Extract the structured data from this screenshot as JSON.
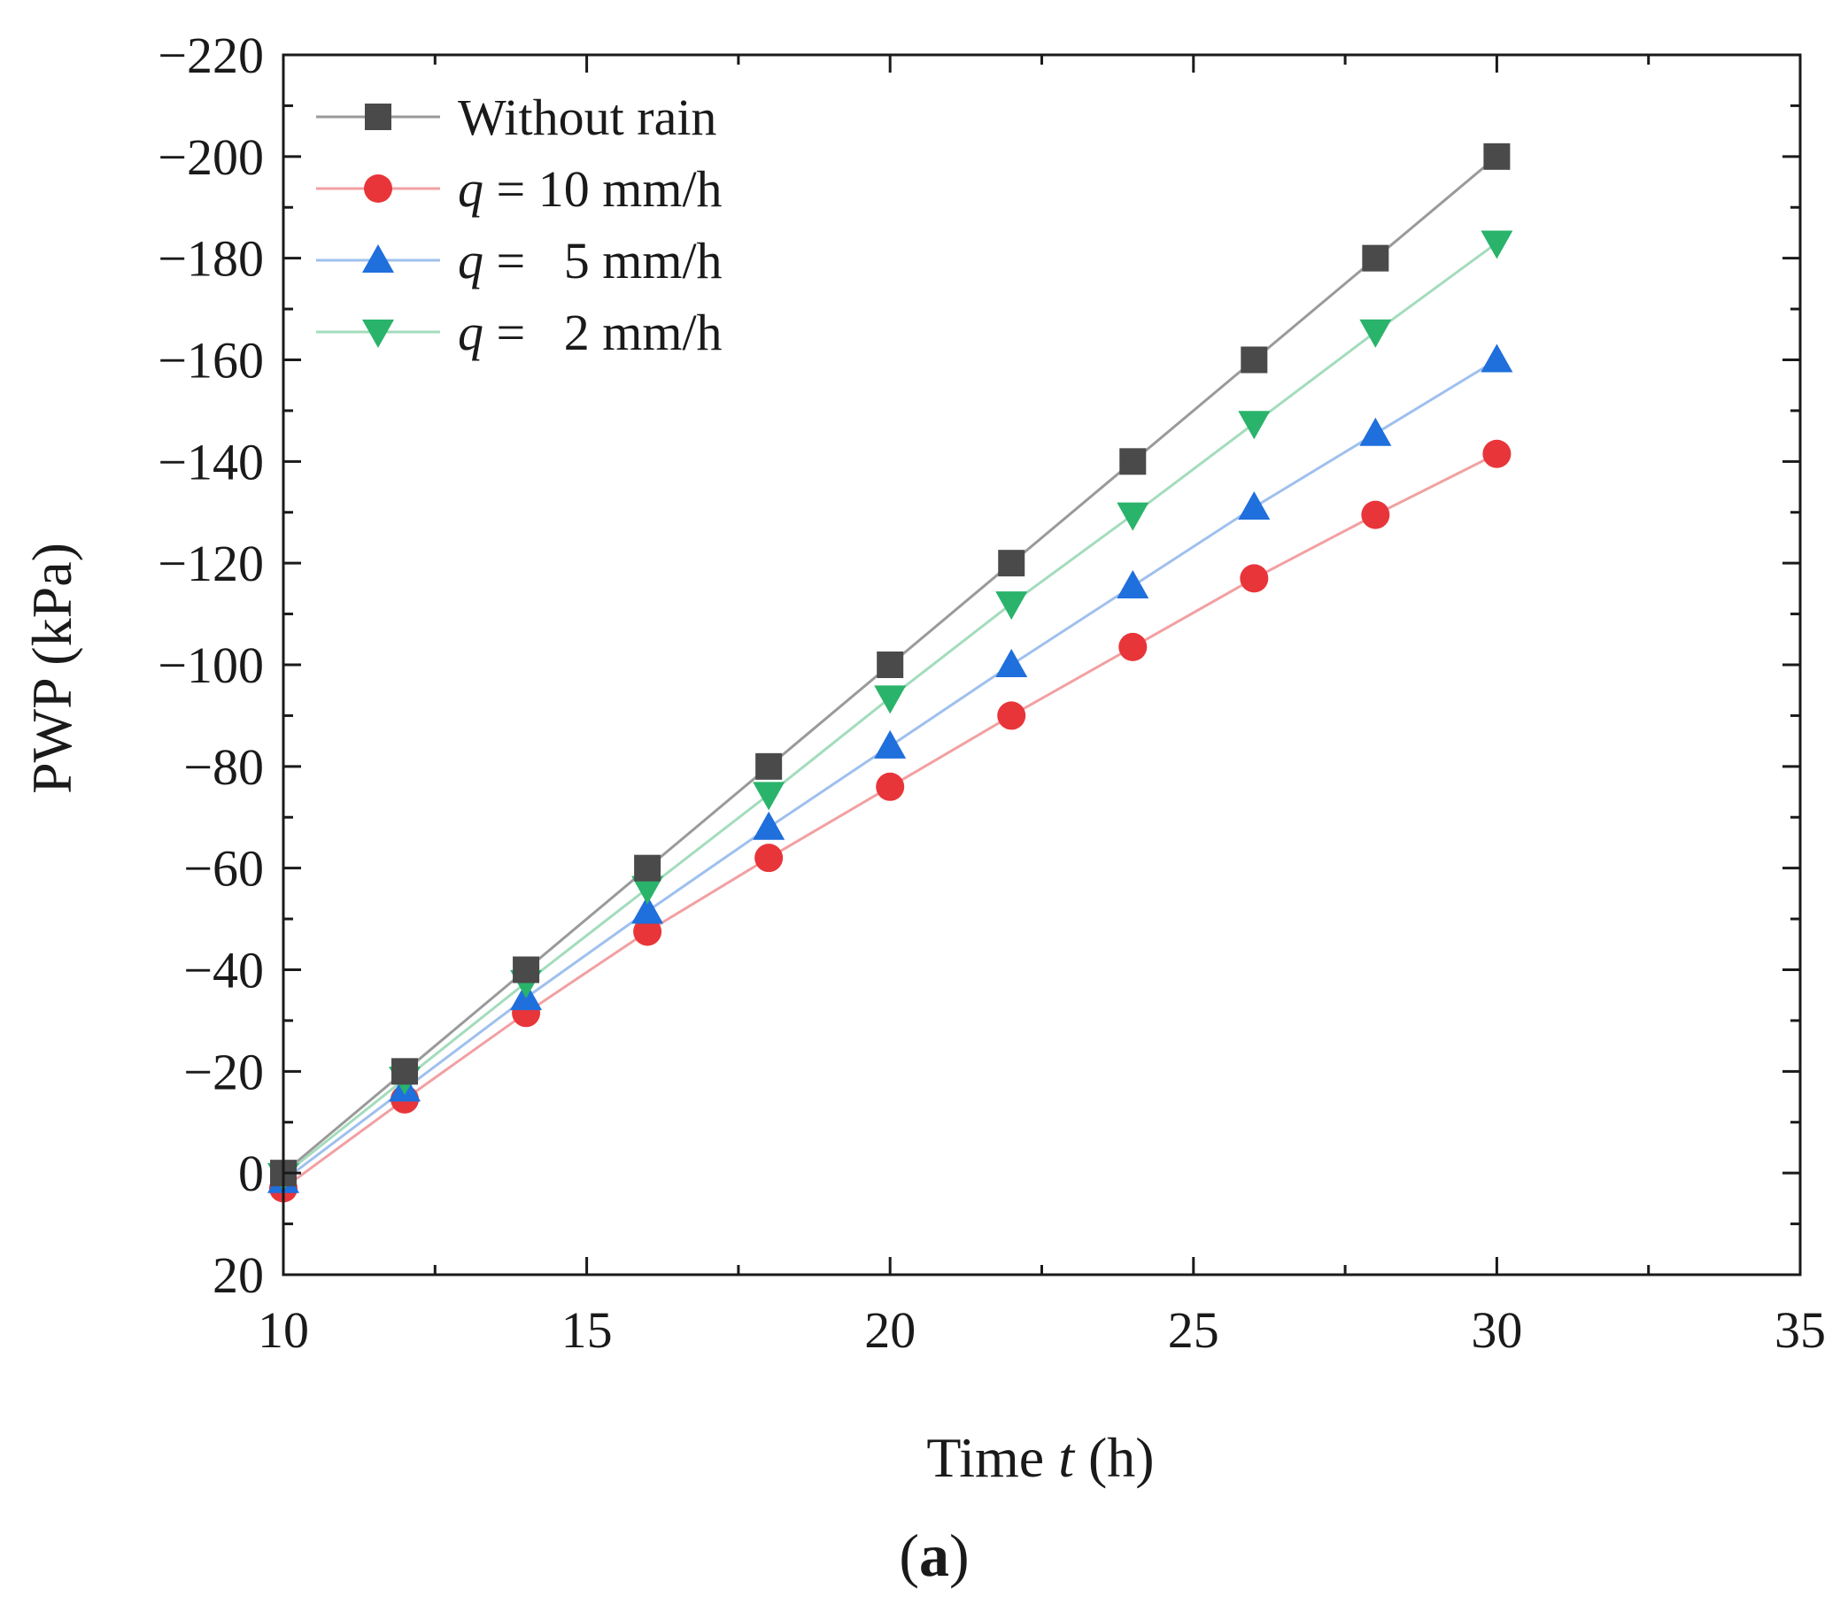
{
  "chart_data": {
    "type": "line",
    "xlabel": {
      "prefix": "Time ",
      "var": "t",
      "suffix": " (h)"
    },
    "ylabel": "PWP (kPa)",
    "xlim": [
      10,
      35
    ],
    "ylim": [
      20,
      -220
    ],
    "y_inverted": true,
    "xticks": [
      10,
      15,
      20,
      25,
      30,
      35
    ],
    "xtick_labels": [
      "10",
      "15",
      "20",
      "25",
      "30",
      "35"
    ],
    "yticks": [
      20,
      0,
      -20,
      -40,
      -60,
      -80,
      -100,
      -120,
      -140,
      -160,
      -180,
      -200,
      -220
    ],
    "ytick_labels": [
      "20",
      "0",
      "−20",
      "−40",
      "−60",
      "−80",
      "−100",
      "−120",
      "−140",
      "−160",
      "−180",
      "−200",
      "−220"
    ],
    "panel_label": {
      "open": "(",
      "letter": "a",
      "close": ")"
    },
    "legend_position": "top-left",
    "series": [
      {
        "name": "Without rain",
        "legend": {
          "var": "",
          "rest": "Without rain"
        },
        "marker": "square",
        "marker_color": "#4a4a4a",
        "line_color": "#9a9a9a",
        "x": [
          10,
          12,
          14,
          16,
          18,
          20,
          22,
          24,
          26,
          28,
          30
        ],
        "y": [
          0,
          -20,
          -40,
          -60,
          -80,
          -100,
          -120,
          -140,
          -160,
          -180,
          -200
        ]
      },
      {
        "name": "q = 10 mm/h",
        "legend": {
          "var": "q",
          "rest": " = 10 mm/h"
        },
        "marker": "circle",
        "marker_color": "#e8353a",
        "line_color": "#f2a0a2",
        "x": [
          10,
          12,
          14,
          16,
          18,
          20,
          22,
          24,
          26,
          28,
          30
        ],
        "y": [
          3,
          -14.5,
          -31.5,
          -47.5,
          -62,
          -76,
          -90,
          -103.5,
          -117,
          -129.5,
          -141.5
        ]
      },
      {
        "name": "q = 5 mm/h",
        "legend": {
          "var": "q",
          "rest": " =   5 mm/h"
        },
        "marker": "triangle-up",
        "marker_color": "#1f6fdc",
        "line_color": "#9fc0ee",
        "x": [
          10,
          12,
          14,
          16,
          18,
          20,
          22,
          24,
          26,
          28,
          30
        ],
        "y": [
          1.5,
          -16.5,
          -34.5,
          -51.5,
          -68,
          -84,
          -100,
          -115.5,
          -131,
          -145.5,
          -160
        ]
      },
      {
        "name": "q = 2 mm/h",
        "legend": {
          "var": "q",
          "rest": " =   2 mm/h"
        },
        "marker": "triangle-down",
        "marker_color": "#2ab36b",
        "line_color": "#a3dcbc",
        "x": [
          10,
          12,
          14,
          16,
          18,
          20,
          22,
          24,
          26,
          28,
          30
        ],
        "y": [
          0.5,
          -18.5,
          -37.5,
          -56,
          -74.5,
          -93.5,
          -112,
          -129.5,
          -147.5,
          -165.5,
          -183
        ]
      }
    ]
  }
}
